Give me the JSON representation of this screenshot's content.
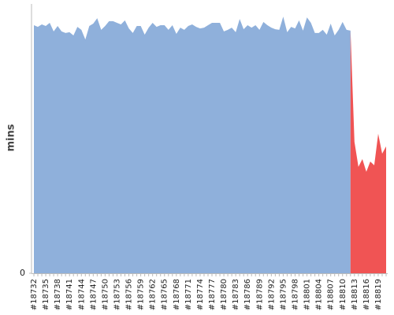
{
  "chart_data": {
    "type": "area",
    "y_label": "mins",
    "categories": [
      "#18732",
      null,
      null,
      "#18735",
      null,
      null,
      "#18738",
      null,
      null,
      "#18741",
      null,
      null,
      "#18744",
      null,
      null,
      "#18747",
      null,
      null,
      "#18750",
      null,
      null,
      "#18753",
      null,
      null,
      "#18756",
      null,
      null,
      "#18759",
      null,
      null,
      "#18762",
      null,
      null,
      "#18765",
      null,
      null,
      "#18768",
      null,
      null,
      "#18771",
      null,
      null,
      "#18774",
      null,
      null,
      "#18777",
      null,
      null,
      "#18780",
      null,
      null,
      "#18783",
      null,
      null,
      "#18786",
      null,
      null,
      "#18789",
      null,
      null,
      "#18792",
      null,
      null,
      "#18795",
      null,
      null,
      "#18798",
      null,
      null,
      "#18801",
      null,
      null,
      "#18804",
      null,
      null,
      "#18807",
      null,
      null,
      "#18810",
      null,
      null,
      "#18813",
      null,
      null,
      "#18816",
      null,
      null,
      "#18819",
      null,
      null
    ],
    "series": [
      {
        "color": "#8fb0db",
        "values": [
          92.1,
          91.5,
          92.4,
          91.8,
          93.0,
          89.8,
          91.8,
          89.8,
          89.2,
          89.5,
          88.3,
          91.5,
          90.4,
          86.8,
          91.8,
          92.7,
          94.7,
          90.4,
          91.8,
          93.6,
          93.6,
          93.0,
          92.4,
          93.9,
          90.9,
          89.2,
          91.8,
          91.8,
          88.6,
          91.2,
          93.0,
          91.5,
          92.1,
          92.1,
          90.4,
          92.1,
          88.9,
          91.2,
          90.4,
          91.8,
          92.4,
          91.5,
          90.9,
          91.2,
          92.1,
          93.0,
          93.0,
          93.0,
          89.8,
          90.4,
          91.2,
          89.5,
          94.4,
          90.6,
          92.1,
          91.2,
          92.1,
          90.4,
          93.3,
          92.1,
          91.2,
          90.6,
          90.4,
          95.3,
          89.5,
          91.5,
          90.9,
          93.9,
          90.1,
          95.0,
          93.0,
          89.2,
          89.2,
          90.4,
          88.6,
          92.7,
          88.3,
          90.4,
          93.3,
          90.4,
          90.1,
          null,
          null,
          null,
          null,
          null,
          null,
          null,
          null,
          null
        ]
      },
      {
        "color": "#f05454",
        "values": [
          null,
          null,
          null,
          null,
          null,
          null,
          null,
          null,
          null,
          null,
          null,
          null,
          null,
          null,
          null,
          null,
          null,
          null,
          null,
          null,
          null,
          null,
          null,
          null,
          null,
          null,
          null,
          null,
          null,
          null,
          null,
          null,
          null,
          null,
          null,
          null,
          null,
          null,
          null,
          null,
          null,
          null,
          null,
          null,
          null,
          null,
          null,
          null,
          null,
          null,
          null,
          null,
          null,
          null,
          null,
          null,
          null,
          null,
          null,
          null,
          null,
          null,
          null,
          null,
          null,
          null,
          null,
          null,
          null,
          null,
          null,
          null,
          null,
          null,
          null,
          null,
          null,
          null,
          null,
          null,
          90.1,
          48.8,
          39.5,
          42.4,
          37.7,
          41.5,
          40.1,
          51.8,
          44.4,
          47.1
        ]
      }
    ],
    "ylim": [
      0,
      100
    ],
    "yticks": [
      0
    ]
  }
}
